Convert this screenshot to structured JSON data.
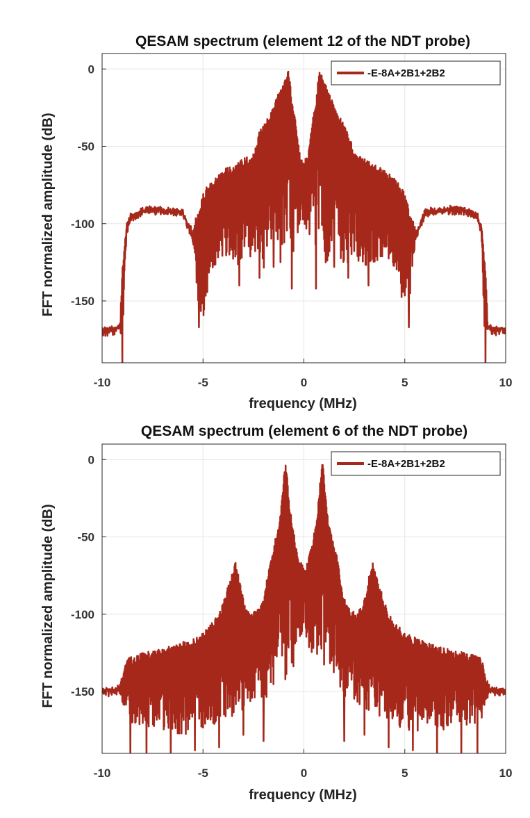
{
  "chart_data": [
    {
      "type": "line",
      "title": "QESAM spectrum (element 12 of the NDT probe)",
      "xlabel": "frequency (MHz)",
      "ylabel": "FFT normalized amplitude (dB)",
      "xlim": [
        -10,
        10
      ],
      "ylim": [
        -190,
        10
      ],
      "xticks": [
        -10,
        -5,
        0,
        5,
        10
      ],
      "yticks": [
        0,
        -50,
        -100,
        -150
      ],
      "grid": true,
      "legend_position": "top-right",
      "series": [
        {
          "name": "-E-8A+2B1+2B2",
          "color": "#a5281b",
          "envelope": {
            "x": [
              -10,
              -9.3,
              -9.1,
              -9.0,
              -8.8,
              -8.6,
              -8.0,
              -7.0,
              -6.0,
              -5.8,
              -5.5,
              -5.2,
              -5.0,
              -4.6,
              -4.0,
              -3.5,
              -3.0,
              -2.5,
              -2.2,
              -2.0,
              -1.7,
              -1.4,
              -1.1,
              -0.9,
              -0.75,
              -0.6,
              -0.4,
              -0.2,
              0,
              0.2,
              0.4,
              0.6,
              0.75,
              0.9,
              1.1,
              1.4,
              1.7,
              2.0,
              2.2,
              2.5,
              3.0,
              3.5,
              4.0,
              4.6,
              5.0,
              5.2,
              5.5,
              5.8,
              6.0,
              7.0,
              8.0,
              8.6,
              8.8,
              9.0,
              9.1,
              9.3,
              10
            ],
            "upper": [
              -167,
              -166,
              -162,
              -128,
              -100,
              -93,
              -89,
              -88,
              -90,
              -97,
              -102,
              -90,
              -80,
              -72,
              -65,
              -62,
              -58,
              -55,
              -40,
              -35,
              -30,
              -20,
              -10,
              -5,
              0,
              -20,
              -35,
              -55,
              -60,
              -55,
              -35,
              -20,
              0,
              -5,
              -10,
              -20,
              -30,
              -35,
              -40,
              -55,
              -58,
              -62,
              -65,
              -72,
              -80,
              -90,
              -102,
              -97,
              -90,
              -88,
              -89,
              -93,
              -100,
              -128,
              -162,
              -166,
              -167
            ],
            "lower": [
              -169,
              -168,
              -168,
              -190,
              -110,
              -97,
              -93,
              -92,
              -95,
              -100,
              -115,
              -155,
              -162,
              -130,
              -122,
              -125,
              -130,
              -120,
              -125,
              -130,
              -122,
              -110,
              -130,
              -120,
              -100,
              -140,
              -110,
              -105,
              -102,
              -105,
              -110,
              -140,
              -100,
              -120,
              -130,
              -110,
              -122,
              -130,
              -125,
              -120,
              -130,
              -125,
              -122,
              -130,
              -162,
              -155,
              -115,
              -100,
              -95,
              -92,
              -93,
              -97,
              -110,
              -190,
              -168,
              -168,
              -169
            ]
          },
          "spikes": [
            {
              "x": -9.0,
              "y": -190
            },
            {
              "x": 9.0,
              "y": -190
            },
            {
              "x": -5.2,
              "y": -167
            },
            {
              "x": 5.2,
              "y": -167
            },
            {
              "x": -3.2,
              "y": -140
            },
            {
              "x": 3.2,
              "y": -140
            },
            {
              "x": -2.2,
              "y": -135
            },
            {
              "x": 2.2,
              "y": -135
            },
            {
              "x": -0.6,
              "y": -142
            },
            {
              "x": 0.6,
              "y": -142
            },
            {
              "x": -1.5,
              "y": -128
            },
            {
              "x": 1.5,
              "y": -128
            }
          ]
        }
      ]
    },
    {
      "type": "line",
      "title": "QESAM spectrum (element 6 of the NDT probe)",
      "xlabel": "frequency (MHz)",
      "ylabel": "FFT normalized amplitude (dB)",
      "xlim": [
        -10,
        10
      ],
      "ylim": [
        -190,
        10
      ],
      "xticks": [
        -10,
        -5,
        0,
        5,
        10
      ],
      "yticks": [
        0,
        -50,
        -100,
        -150
      ],
      "grid": true,
      "legend_position": "top-right",
      "series": [
        {
          "name": "-E-8A+2B1+2B2",
          "color": "#a5281b",
          "envelope": {
            "x": [
              -10,
              -9.2,
              -9.0,
              -8.8,
              -8.0,
              -7.0,
              -6.0,
              -5.0,
              -4.2,
              -3.6,
              -3.4,
              -3.0,
              -2.6,
              -2.2,
              -2.0,
              -1.6,
              -1.2,
              -1.0,
              -0.9,
              -0.7,
              -0.4,
              -0.2,
              0,
              0.2,
              0.4,
              0.7,
              0.9,
              1.0,
              1.2,
              1.6,
              2.0,
              2.2,
              2.6,
              3.0,
              3.4,
              3.6,
              4.2,
              5.0,
              6.0,
              7.0,
              8.0,
              8.8,
              9.0,
              9.2,
              10
            ],
            "upper": [
              -148,
              -146,
              -140,
              -128,
              -125,
              -122,
              -118,
              -112,
              -100,
              -75,
              -65,
              -90,
              -100,
              -95,
              -90,
              -60,
              -40,
              -10,
              0,
              -30,
              -55,
              -65,
              -70,
              -65,
              -55,
              -30,
              0,
              -10,
              -40,
              -60,
              -90,
              -95,
              -100,
              -90,
              -65,
              -75,
              -100,
              -112,
              -118,
              -122,
              -125,
              -128,
              -140,
              -146,
              -148
            ],
            "lower": [
              -150,
              -150,
              -160,
              -170,
              -172,
              -175,
              -178,
              -175,
              -170,
              -168,
              -165,
              -162,
              -158,
              -150,
              -158,
              -150,
              -130,
              -140,
              -145,
              -140,
              -130,
              -120,
              -110,
              -120,
              -130,
              -140,
              -145,
              -140,
              -130,
              -150,
              -158,
              -150,
              -158,
              -162,
              -165,
              -168,
              -170,
              -175,
              -178,
              -175,
              -172,
              -170,
              -160,
              -150,
              -150
            ]
          },
          "spikes": [
            {
              "x": -8.6,
              "y": -190
            },
            {
              "x": 8.6,
              "y": -190
            },
            {
              "x": -7.8,
              "y": -190
            },
            {
              "x": 7.8,
              "y": -190
            },
            {
              "x": -6.6,
              "y": -190
            },
            {
              "x": 6.6,
              "y": -190
            },
            {
              "x": -5.4,
              "y": -188
            },
            {
              "x": 5.4,
              "y": -188
            },
            {
              "x": -4.2,
              "y": -186
            },
            {
              "x": 4.2,
              "y": -186
            },
            {
              "x": -2.0,
              "y": -182
            },
            {
              "x": 2.0,
              "y": -182
            },
            {
              "x": -3.0,
              "y": -178
            },
            {
              "x": 3.0,
              "y": -178
            }
          ]
        }
      ]
    }
  ]
}
